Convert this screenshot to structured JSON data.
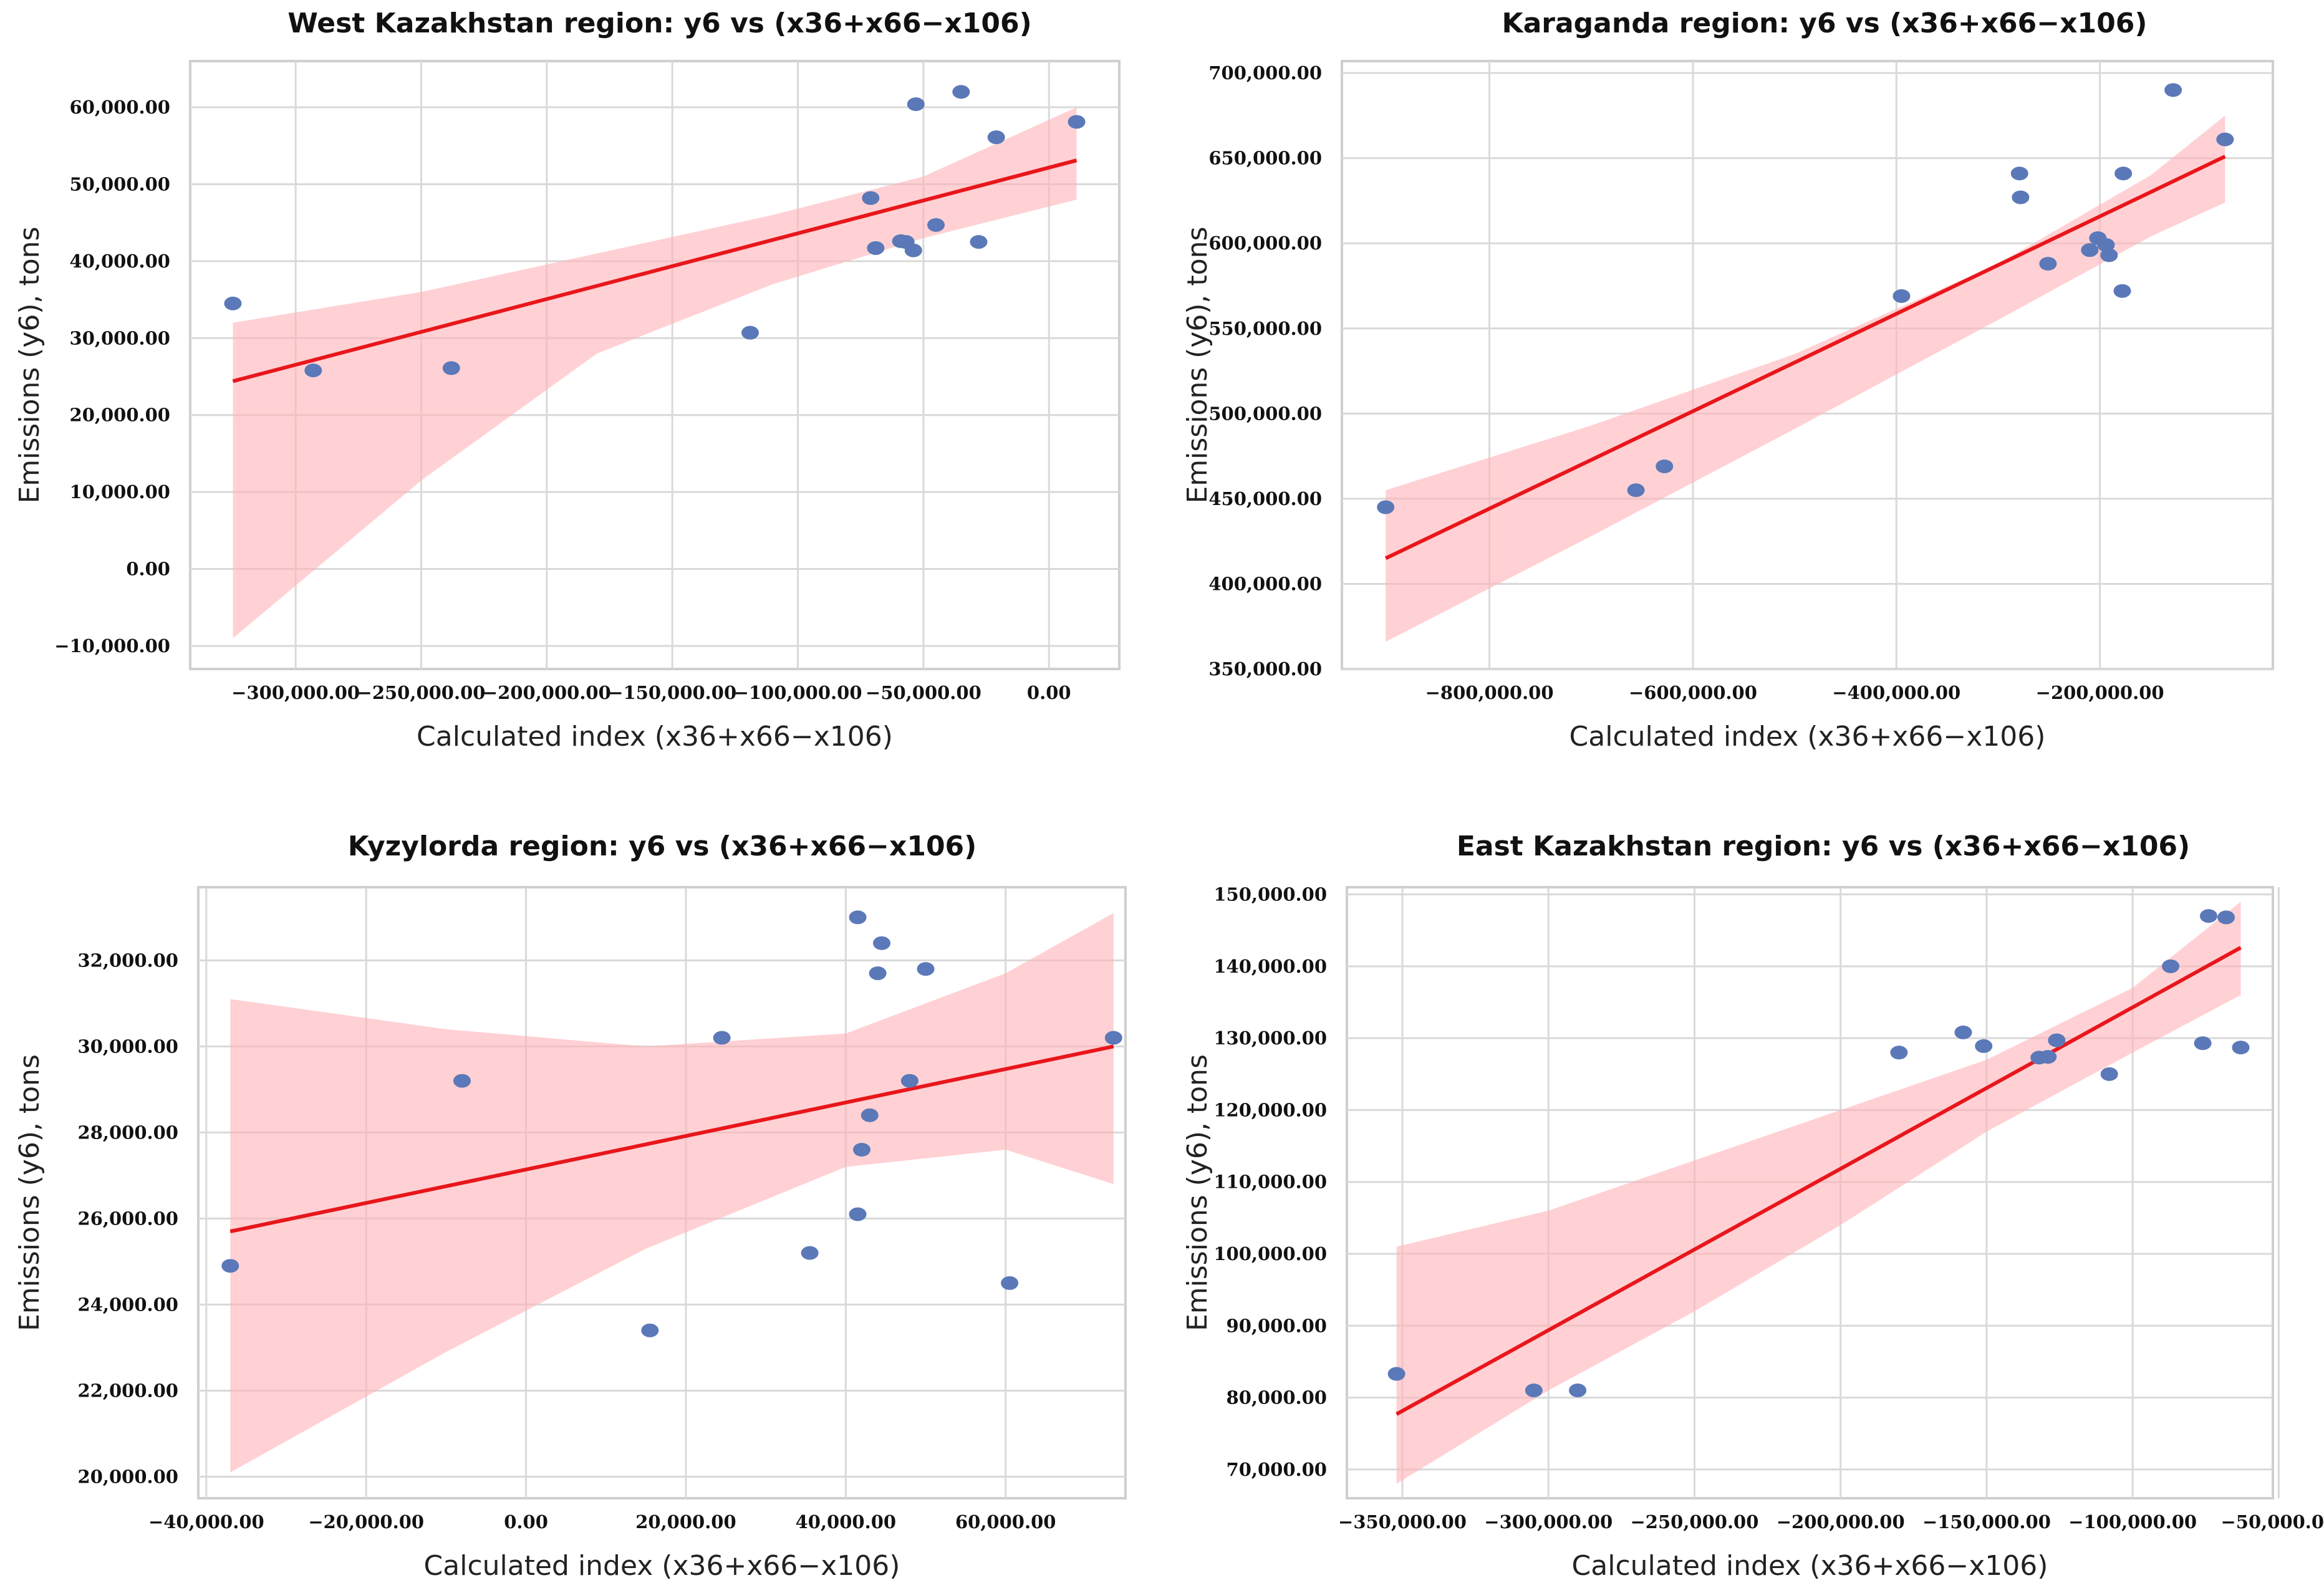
{
  "chart_data": [
    {
      "type": "scatter",
      "title": "West Kazakhstan region: y6 vs (x36+x66−x106)",
      "xlabel": "Calculated index (x36+x66−x106)",
      "ylabel": "Emissions (y6), tons",
      "xlim": [
        -342000,
        28000
      ],
      "ylim": [
        -13000,
        66000
      ],
      "xticks": [
        -300000,
        -250000,
        -200000,
        -150000,
        -100000,
        -50000,
        0
      ],
      "xtick_labels": [
        "−300,000.00",
        "−250,000.00",
        "−200,000.00",
        "−150,000.00",
        "−100,000.00",
        "−50,000.00",
        "0.00"
      ],
      "yticks": [
        -10000,
        0,
        10000,
        20000,
        30000,
        40000,
        50000,
        60000
      ],
      "ytick_labels": [
        "−10,000.00",
        "0.00",
        "10,000.00",
        "20,000.00",
        "30,000.00",
        "40,000.00",
        "50,000.00",
        "60,000.00"
      ],
      "points": [
        {
          "x": -325000,
          "y": 34500
        },
        {
          "x": -293000,
          "y": 25800
        },
        {
          "x": -238000,
          "y": 26100
        },
        {
          "x": -119000,
          "y": 30700
        },
        {
          "x": -71000,
          "y": 48200
        },
        {
          "x": -69000,
          "y": 41700
        },
        {
          "x": -59000,
          "y": 42600
        },
        {
          "x": -57000,
          "y": 42500
        },
        {
          "x": -54000,
          "y": 41400
        },
        {
          "x": -53000,
          "y": 60400
        },
        {
          "x": -45000,
          "y": 44700
        },
        {
          "x": -35000,
          "y": 62000
        },
        {
          "x": -28000,
          "y": 42500
        },
        {
          "x": -21000,
          "y": 56100
        },
        {
          "x": 11000,
          "y": 58100
        }
      ],
      "fit": {
        "x": [
          -325000,
          11000
        ],
        "y": [
          24400,
          53100
        ]
      },
      "band": {
        "x": [
          -325000,
          -250000,
          -180000,
          -110000,
          -50000,
          11000
        ],
        "upper": [
          32000,
          36000,
          41000,
          46000,
          51000,
          60000
        ],
        "lower": [
          -9000,
          11500,
          28000,
          37000,
          43000,
          48000
        ]
      }
    },
    {
      "type": "scatter",
      "title": "Karaganda region: y6 vs (x36+x66−x106)",
      "xlabel": "Calculated index (x36+x66−x106)",
      "ylabel": "Emissions (y6), tons",
      "xlim": [
        -945000,
        -30000
      ],
      "ylim": [
        350000,
        707000
      ],
      "xticks": [
        -800000,
        -600000,
        -400000,
        -200000
      ],
      "xtick_labels": [
        "−800,000.00",
        "−600,000.00",
        "−400,000.00",
        "−200,000.00"
      ],
      "yticks": [
        350000,
        400000,
        450000,
        500000,
        550000,
        600000,
        650000,
        700000
      ],
      "ytick_labels": [
        "350,000.00",
        "400,000.00",
        "450,000.00",
        "500,000.00",
        "550,000.00",
        "600,000.00",
        "650,000.00",
        "700,000.00"
      ],
      "points": [
        {
          "x": -902000,
          "y": 445000
        },
        {
          "x": -656000,
          "y": 455000
        },
        {
          "x": -628000,
          "y": 469000
        },
        {
          "x": -395000,
          "y": 569000
        },
        {
          "x": -279000,
          "y": 641000
        },
        {
          "x": -278000,
          "y": 627000
        },
        {
          "x": -251000,
          "y": 588000
        },
        {
          "x": -210000,
          "y": 596000
        },
        {
          "x": -202000,
          "y": 603000
        },
        {
          "x": -194000,
          "y": 599000
        },
        {
          "x": -191000,
          "y": 593000
        },
        {
          "x": -177000,
          "y": 641000
        },
        {
          "x": -178000,
          "y": 572000
        },
        {
          "x": -128000,
          "y": 690000
        },
        {
          "x": -77000,
          "y": 661000
        }
      ],
      "fit": {
        "x": [
          -902000,
          -77000
        ],
        "y": [
          415000,
          651000
        ]
      },
      "band": {
        "x": [
          -902000,
          -700000,
          -500000,
          -300000,
          -150000,
          -77000
        ],
        "upper": [
          455000,
          493000,
          535000,
          588000,
          640000,
          675000
        ],
        "lower": [
          366000,
          428000,
          491000,
          555000,
          604000,
          624000
        ]
      }
    },
    {
      "type": "scatter",
      "title": "Kyzylorda region: y6 vs (x36+x66−x106)",
      "xlabel": "Calculated index (x36+x66−x106)",
      "ylabel": "Emissions (y6), tons",
      "xlim": [
        -41000,
        75000
      ],
      "ylim": [
        19500,
        33700
      ],
      "xticks": [
        -40000,
        -20000,
        0,
        20000,
        40000,
        60000
      ],
      "xtick_labels": [
        "−40,000.00",
        "−20,000.00",
        "0.00",
        "20,000.00",
        "40,000.00",
        "60,000.00"
      ],
      "yticks": [
        20000,
        22000,
        24000,
        26000,
        28000,
        30000,
        32000
      ],
      "ytick_labels": [
        "20,000.00",
        "22,000.00",
        "24,000.00",
        "26,000.00",
        "28,000.00",
        "30,000.00",
        "32,000.00"
      ],
      "points": [
        {
          "x": -37000,
          "y": 24900
        },
        {
          "x": -8000,
          "y": 29200
        },
        {
          "x": 15500,
          "y": 23400
        },
        {
          "x": 24500,
          "y": 30200
        },
        {
          "x": 35500,
          "y": 25200
        },
        {
          "x": 41500,
          "y": 33000
        },
        {
          "x": 41500,
          "y": 26100
        },
        {
          "x": 42000,
          "y": 27600
        },
        {
          "x": 43000,
          "y": 28400
        },
        {
          "x": 44000,
          "y": 31700
        },
        {
          "x": 44500,
          "y": 32400
        },
        {
          "x": 48000,
          "y": 29200
        },
        {
          "x": 50000,
          "y": 31800
        },
        {
          "x": 60500,
          "y": 24500
        },
        {
          "x": 73500,
          "y": 30200
        }
      ],
      "fit": {
        "x": [
          -37000,
          73500
        ],
        "y": [
          25700,
          30000
        ]
      },
      "band": {
        "x": [
          -37000,
          -10000,
          15000,
          40000,
          60000,
          73500
        ],
        "upper": [
          31100,
          30400,
          30000,
          30300,
          31700,
          33100
        ],
        "lower": [
          20100,
          22900,
          25300,
          27200,
          27600,
          26800
        ]
      }
    },
    {
      "type": "scatter",
      "title": "East Kazakhstan region: y6 vs (x36+x66−x106)",
      "xlabel": "Calculated index (x36+x66−x106)",
      "ylabel": "Emissions (y6), tons",
      "xlim": [
        -369000,
        -52000
      ],
      "ylim": [
        66000,
        151000
      ],
      "xticks": [
        -350000,
        -300000,
        -250000,
        -200000,
        -150000,
        -100000,
        -50000
      ],
      "xtick_labels": [
        "−350,000.00",
        "−300,000.00",
        "−250,000.00",
        "−200,000.00",
        "−150,000.00",
        "−100,000.00",
        "−50,000.00"
      ],
      "yticks": [
        70000,
        80000,
        90000,
        100000,
        110000,
        120000,
        130000,
        140000,
        150000
      ],
      "ytick_labels": [
        "70,000.00",
        "80,000.00",
        "90,000.00",
        "100,000.00",
        "110,000.00",
        "120,000.00",
        "130,000.00",
        "140,000.00",
        "150,000.00"
      ],
      "points": [
        {
          "x": -352000,
          "y": 83300
        },
        {
          "x": -305000,
          "y": 81000
        },
        {
          "x": -290000,
          "y": 81000
        },
        {
          "x": -180000,
          "y": 128000
        },
        {
          "x": -158000,
          "y": 130800
        },
        {
          "x": -151000,
          "y": 128900
        },
        {
          "x": -132000,
          "y": 127300
        },
        {
          "x": -129000,
          "y": 127400
        },
        {
          "x": -126000,
          "y": 129700
        },
        {
          "x": -108000,
          "y": 125000
        },
        {
          "x": -87000,
          "y": 140000
        },
        {
          "x": -76000,
          "y": 129300
        },
        {
          "x": -74000,
          "y": 147000
        },
        {
          "x": -68000,
          "y": 146800
        },
        {
          "x": -63000,
          "y": 128700
        }
      ],
      "fit": {
        "x": [
          -352000,
          -63000
        ],
        "y": [
          77700,
          142600
        ]
      },
      "band": {
        "x": [
          -352000,
          -300000,
          -250000,
          -200000,
          -150000,
          -100000,
          -63000
        ],
        "upper": [
          101000,
          106000,
          113000,
          120000,
          127000,
          137000,
          149000
        ],
        "lower": [
          68000,
          81000,
          92000,
          104000,
          117000,
          128000,
          136000
        ]
      }
    }
  ]
}
